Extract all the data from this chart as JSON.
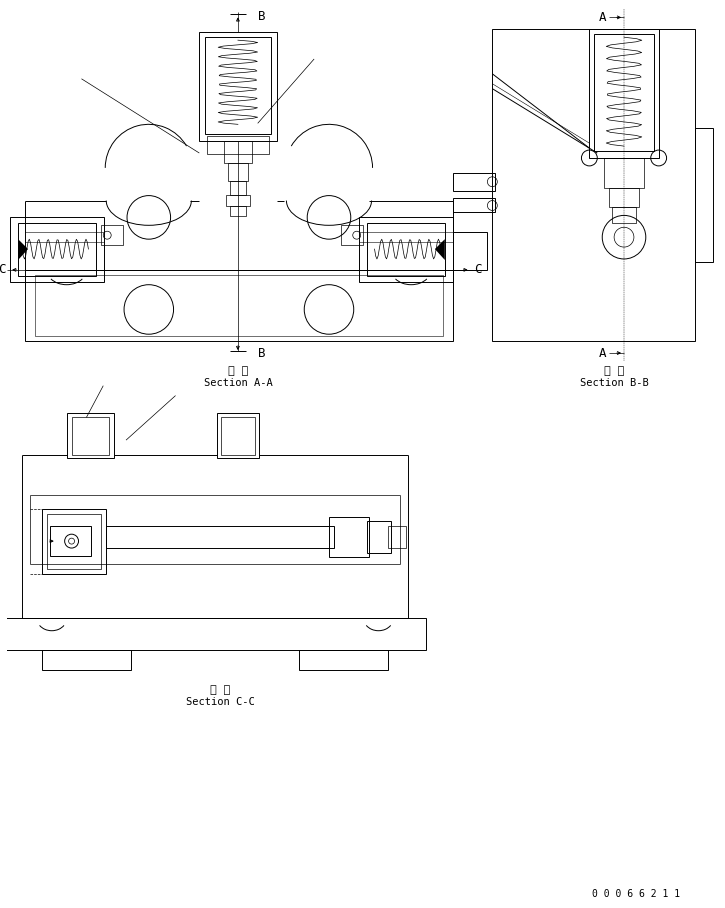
{
  "bg": "#ffffff",
  "lc": "#000000",
  "lw": 0.7,
  "tlw": 0.4,
  "fig_w": 7.25,
  "fig_h": 9.08,
  "sec_AA_line1": "断 面",
  "sec_AA_line2": "Section A-A",
  "sec_BB_line1": "断 面",
  "sec_BB_line2": "Section B-B",
  "sec_CC_line1": "断 面",
  "sec_CC_line2": "Section C-C",
  "doc_num": "0 0 0 6 6 2 1 1",
  "label_A": "A",
  "label_B": "B",
  "label_C": "C"
}
